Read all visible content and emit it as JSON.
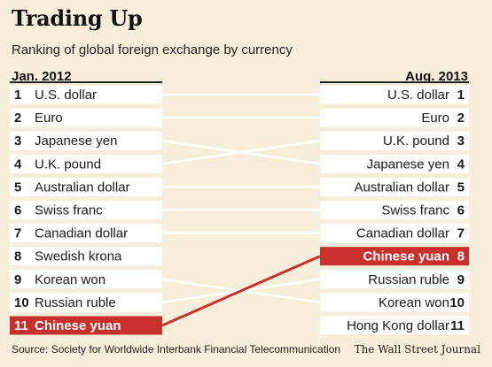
{
  "header": {
    "title": "Trading Up",
    "subtitle": "Ranking of global foreign exchange by currency"
  },
  "chart_data": {
    "type": "slope",
    "left_label": "Jan. 2012",
    "right_label": "Aug. 2013",
    "left": [
      {
        "rank": 1,
        "name": "U.S. dollar"
      },
      {
        "rank": 2,
        "name": "Euro"
      },
      {
        "rank": 3,
        "name": "Japanese yen"
      },
      {
        "rank": 4,
        "name": "U.K. pound"
      },
      {
        "rank": 5,
        "name": "Australian dollar"
      },
      {
        "rank": 6,
        "name": "Swiss franc"
      },
      {
        "rank": 7,
        "name": "Canadian dollar"
      },
      {
        "rank": 8,
        "name": "Swedish krona"
      },
      {
        "rank": 9,
        "name": "Korean won"
      },
      {
        "rank": 10,
        "name": "Russian ruble"
      },
      {
        "rank": 11,
        "name": "Chinese yuan",
        "highlight": true
      }
    ],
    "right": [
      {
        "rank": 1,
        "name": "U.S. dollar"
      },
      {
        "rank": 2,
        "name": "Euro"
      },
      {
        "rank": 3,
        "name": "U.K. pound"
      },
      {
        "rank": 4,
        "name": "Japanese yen"
      },
      {
        "rank": 5,
        "name": "Australian dollar"
      },
      {
        "rank": 6,
        "name": "Swiss franc"
      },
      {
        "rank": 7,
        "name": "Canadian dollar"
      },
      {
        "rank": 8,
        "name": "Chinese yuan",
        "highlight": true
      },
      {
        "rank": 9,
        "name": "Russian ruble"
      },
      {
        "rank": 10,
        "name": "Korean won"
      },
      {
        "rank": 11,
        "name": "Hong Kong dollar"
      }
    ],
    "links": [
      {
        "currency": "U.S. dollar",
        "from": 1,
        "to": 1
      },
      {
        "currency": "Euro",
        "from": 2,
        "to": 2
      },
      {
        "currency": "Japanese yen",
        "from": 3,
        "to": 4
      },
      {
        "currency": "U.K. pound",
        "from": 4,
        "to": 3
      },
      {
        "currency": "Australian dollar",
        "from": 5,
        "to": 5
      },
      {
        "currency": "Swiss franc",
        "from": 6,
        "to": 6
      },
      {
        "currency": "Canadian dollar",
        "from": 7,
        "to": 7
      },
      {
        "currency": "Korean won",
        "from": 9,
        "to": 10
      },
      {
        "currency": "Russian ruble",
        "from": 10,
        "to": 9
      },
      {
        "currency": "Chinese yuan",
        "from": 11,
        "to": 8,
        "highlight": true
      }
    ],
    "colors": {
      "background": "#f6eedb",
      "row": "#ffffff",
      "highlight": "#c8302c",
      "line": "#ffffff",
      "text": "#1a1a1a"
    }
  },
  "footer": {
    "source": "Source: Society for Worldwide Interbank Financial Telecommunication",
    "credit": "The Wall Street Journal"
  }
}
